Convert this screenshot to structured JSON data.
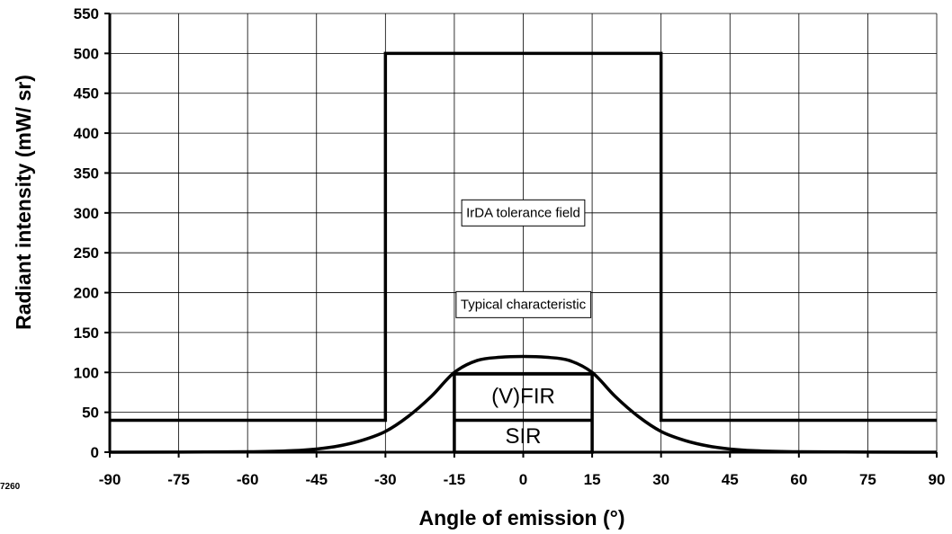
{
  "figure_id": "7260",
  "chart_data": {
    "type": "line",
    "title": "",
    "xlabel": "Angle of emission  (°)",
    "ylabel": "Radiant intensity (mW/ sr)",
    "xlim": [
      -90,
      90
    ],
    "ylim": [
      0,
      550
    ],
    "x_ticks": [
      -90,
      -75,
      -60,
      -45,
      -30,
      -15,
      0,
      15,
      30,
      45,
      60,
      75,
      90
    ],
    "y_ticks": [
      0,
      50,
      100,
      150,
      200,
      250,
      300,
      350,
      400,
      450,
      500,
      550
    ],
    "grid": true,
    "series": [
      {
        "id": "tolerance",
        "x": [
          -90,
          -30,
          -30,
          30,
          30,
          90
        ],
        "y": [
          40,
          40,
          500,
          500,
          40,
          40
        ]
      },
      {
        "id": "typical",
        "x": [
          -90,
          -60,
          -50,
          -45,
          -40,
          -35,
          -30,
          -25,
          -20,
          -15,
          -10,
          -5,
          0,
          5,
          10,
          15,
          20,
          25,
          30,
          35,
          40,
          45,
          50,
          60,
          90
        ],
        "y": [
          0,
          0.5,
          2,
          4,
          8,
          15,
          26,
          45,
          70,
          100,
          115,
          119,
          120,
          119,
          115,
          100,
          70,
          45,
          26,
          15,
          8,
          4,
          2,
          0.5,
          0
        ]
      },
      {
        "id": "fir-box",
        "x": [
          -15,
          15,
          15,
          -15,
          -15
        ],
        "y": [
          0,
          0,
          98,
          98,
          0
        ]
      },
      {
        "id": "sir-divider",
        "x": [
          -15,
          15
        ],
        "y": [
          40,
          40
        ]
      }
    ],
    "annotations": [
      {
        "text": "IrDA tolerance field",
        "x": 0,
        "y": 300,
        "boxed": true
      },
      {
        "text": "Typical characteristic",
        "x": 0,
        "y": 185,
        "boxed": true
      },
      {
        "text": "(V)FIR",
        "x": 0,
        "y": 70,
        "boxed": false
      },
      {
        "text": "SIR",
        "x": 0,
        "y": 20,
        "boxed": false
      }
    ]
  }
}
